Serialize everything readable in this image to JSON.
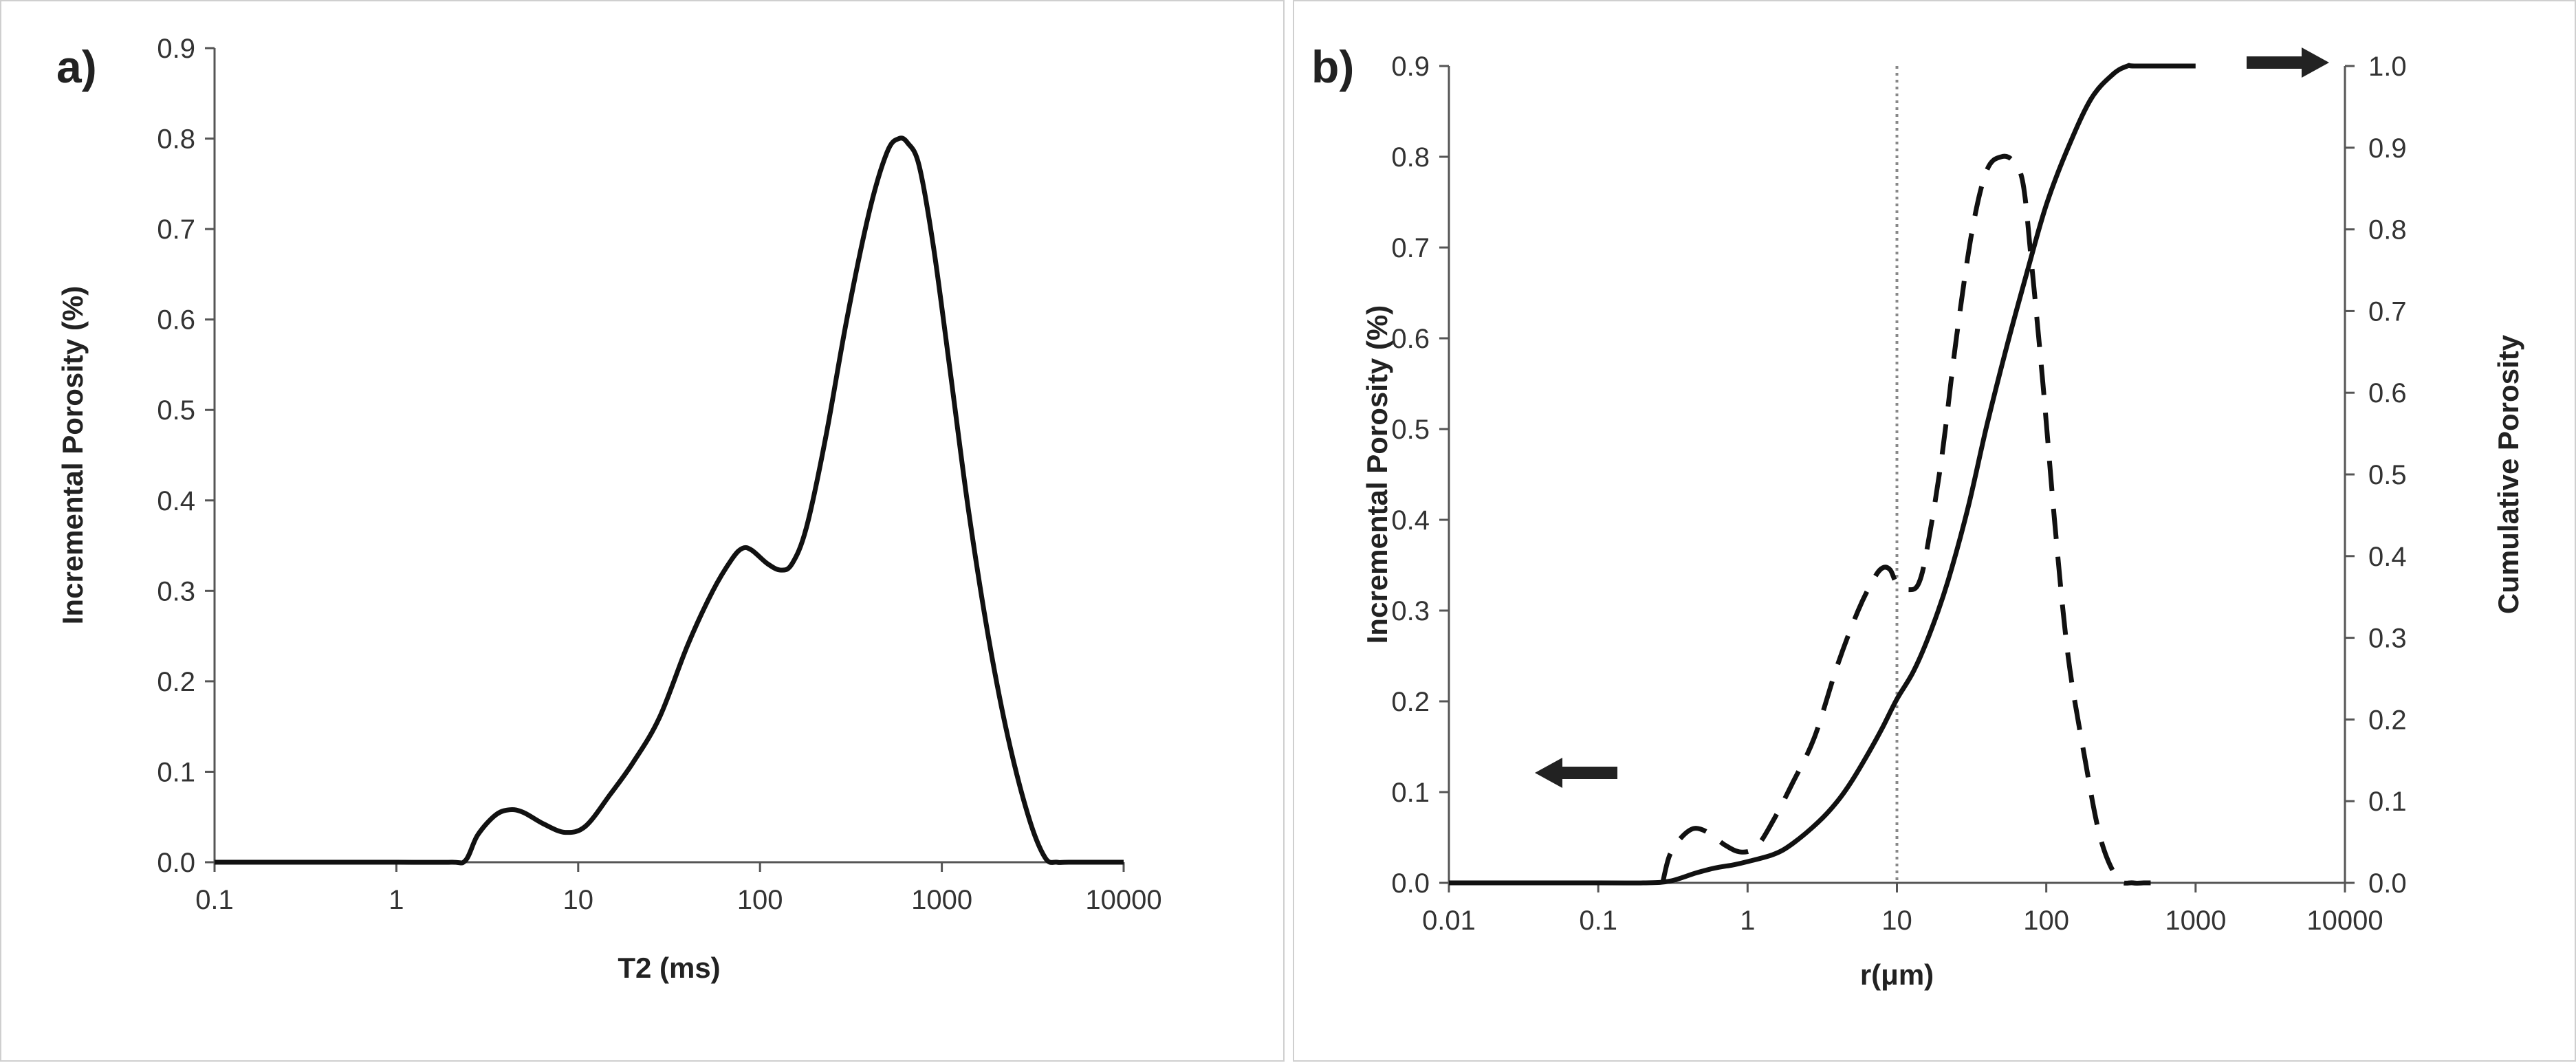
{
  "chart_data": [
    {
      "id": "a",
      "type": "line",
      "panel_label": "a)",
      "xscale": "log",
      "xlabel": "T2 (ms)",
      "ylabel": "Incremental Porosity (%)",
      "xlim": [
        0.1,
        10000
      ],
      "ylim": [
        0,
        0.9
      ],
      "x_ticks": [
        0.1,
        1,
        10,
        100,
        1000,
        10000
      ],
      "x_tick_labels": [
        "0.1",
        "1",
        "10",
        "100",
        "1000",
        "10000"
      ],
      "y_ticks": [
        0,
        0.1,
        0.2,
        0.3,
        0.4,
        0.5,
        0.6,
        0.7,
        0.8,
        0.9
      ],
      "y_tick_labels": [
        "0.0",
        "0.1",
        "0.2",
        "0.3",
        "0.4",
        "0.5",
        "0.6",
        "0.7",
        "0.8",
        "0.9"
      ],
      "series": [
        {
          "name": "Incremental Porosity",
          "style": "solid",
          "x": [
            0.1,
            0.5,
            1,
            2.0,
            2.4,
            2.8,
            3.5,
            4.2,
            5.0,
            6.5,
            8.5,
            11,
            15,
            20,
            28,
            40,
            55,
            70,
            80,
            90,
            110,
            130,
            150,
            180,
            230,
            300,
            400,
            500,
            580,
            650,
            750,
            900,
            1100,
            1400,
            1800,
            2300,
            3000,
            3700,
            4300,
            5000,
            10000
          ],
          "y": [
            0,
            0,
            0,
            0,
            0.002,
            0.03,
            0.052,
            0.058,
            0.055,
            0.042,
            0.033,
            0.04,
            0.075,
            0.11,
            0.16,
            0.24,
            0.3,
            0.335,
            0.347,
            0.345,
            0.33,
            0.323,
            0.33,
            0.37,
            0.47,
            0.6,
            0.72,
            0.785,
            0.8,
            0.795,
            0.77,
            0.68,
            0.55,
            0.39,
            0.25,
            0.14,
            0.05,
            0.005,
            0,
            0,
            0
          ]
        }
      ]
    },
    {
      "id": "b",
      "type": "line",
      "panel_label": "b)",
      "xscale": "log",
      "xlabel": "r(μm)",
      "ylabel": "Incremental Porosity (%)",
      "y2label": "Cumulative Porosity",
      "xlim": [
        0.01,
        10000
      ],
      "ylim": [
        0,
        0.9
      ],
      "y2lim": [
        0,
        1.0
      ],
      "x_ticks": [
        0.01,
        0.1,
        1,
        10,
        100,
        1000,
        10000
      ],
      "x_tick_labels": [
        "0.01",
        "0.1",
        "1",
        "10",
        "100",
        "1000",
        "10000"
      ],
      "y_ticks": [
        0,
        0.1,
        0.2,
        0.3,
        0.4,
        0.5,
        0.6,
        0.7,
        0.8,
        0.9
      ],
      "y_tick_labels": [
        "0.0",
        "0.1",
        "0.2",
        "0.3",
        "0.4",
        "0.5",
        "0.6",
        "0.7",
        "0.8",
        "0.9"
      ],
      "y2_ticks": [
        0,
        0.1,
        0.2,
        0.3,
        0.4,
        0.5,
        0.6,
        0.7,
        0.8,
        0.9,
        1.0
      ],
      "y2_tick_labels": [
        "0.0",
        "0.1",
        "0.2",
        "0.3",
        "0.4",
        "0.5",
        "0.6",
        "0.7",
        "0.8",
        "0.9",
        "1.0"
      ],
      "vline_x": 10,
      "series": [
        {
          "name": "Incremental Porosity",
          "axis": "left",
          "style": "dashed",
          "x": [
            0.27,
            0.3,
            0.36,
            0.44,
            0.55,
            0.7,
            0.9,
            1.15,
            1.5,
            2.0,
            2.8,
            4,
            5.5,
            7,
            8,
            9,
            10,
            12,
            14,
            16,
            20,
            25,
            32,
            40,
            50,
            60,
            70,
            80,
            95,
            115,
            140,
            180,
            230,
            300,
            380,
            450,
            500
          ],
          "y": [
            0,
            0.03,
            0.05,
            0.06,
            0.055,
            0.042,
            0.034,
            0.04,
            0.07,
            0.11,
            0.16,
            0.24,
            0.3,
            0.335,
            0.347,
            0.345,
            0.33,
            0.323,
            0.33,
            0.37,
            0.47,
            0.6,
            0.72,
            0.785,
            0.8,
            0.795,
            0.77,
            0.68,
            0.55,
            0.39,
            0.25,
            0.14,
            0.05,
            0.005,
            0,
            0,
            0
          ]
        },
        {
          "name": "Cumulative Porosity",
          "axis": "right",
          "style": "solid",
          "x": [
            0.01,
            0.1,
            0.2,
            0.3,
            0.45,
            0.6,
            0.8,
            1,
            1.5,
            2,
            3,
            4,
            5,
            6.5,
            8,
            10,
            13,
            17,
            22,
            30,
            40,
            55,
            75,
            100,
            140,
            200,
            280,
            350,
            400,
            1000
          ],
          "y": [
            0,
            0,
            0,
            0.002,
            0.012,
            0.018,
            0.022,
            0.026,
            0.035,
            0.048,
            0.075,
            0.1,
            0.125,
            0.16,
            0.19,
            0.225,
            0.26,
            0.31,
            0.37,
            0.46,
            0.56,
            0.66,
            0.75,
            0.83,
            0.9,
            0.96,
            0.99,
            1.0,
            1.0,
            1.0
          ]
        }
      ]
    }
  ]
}
